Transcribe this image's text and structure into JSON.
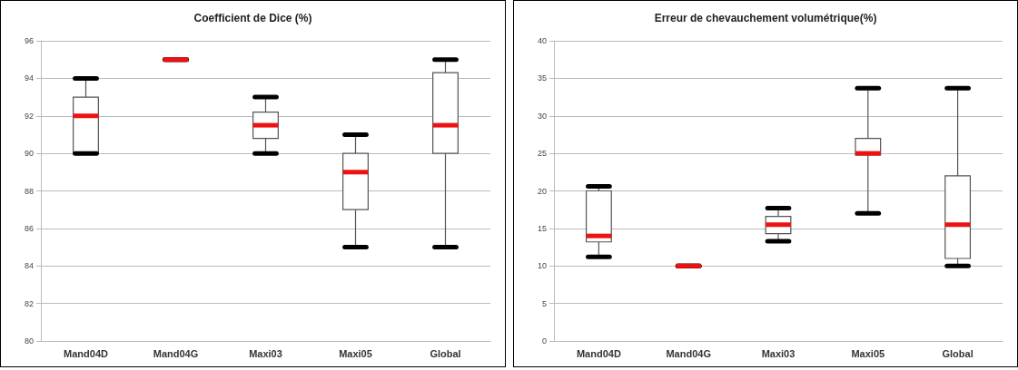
{
  "chart_data": [
    {
      "type": "box",
      "title": "Coefficient de Dice (%)",
      "categories": [
        "Mand04D",
        "Mand04G",
        "Maxi03",
        "Maxi05",
        "Global"
      ],
      "ylim": [
        80,
        96
      ],
      "yticks": [
        80,
        82,
        84,
        86,
        88,
        90,
        92,
        94,
        96
      ],
      "grid": "y",
      "boxes": [
        {
          "low": 90,
          "q1": 90,
          "median": 92,
          "q3": 93,
          "high": 94
        },
        {
          "low": 95,
          "q1": 95,
          "median": 95,
          "q3": 95,
          "high": 95
        },
        {
          "low": 90,
          "q1": 90.8,
          "median": 91.5,
          "q3": 92.2,
          "high": 93
        },
        {
          "low": 85,
          "q1": 87,
          "median": 89,
          "q3": 90,
          "high": 91
        },
        {
          "low": 85,
          "q1": 90,
          "median": 91.5,
          "q3": 94.3,
          "high": 95
        }
      ]
    },
    {
      "type": "box",
      "title": "Erreur de chevauchement volumétrique(%)",
      "categories": [
        "Mand04D",
        "Mand04G",
        "Maxi03",
        "Maxi05",
        "Global"
      ],
      "ylim": [
        0,
        40
      ],
      "yticks": [
        0,
        5,
        10,
        15,
        20,
        25,
        30,
        35,
        40
      ],
      "grid": "y",
      "boxes": [
        {
          "low": 11.2,
          "q1": 13.2,
          "median": 14,
          "q3": 20,
          "high": 20.6
        },
        {
          "low": 10,
          "q1": 10,
          "median": 10,
          "q3": 10,
          "high": 10
        },
        {
          "low": 13.3,
          "q1": 14.3,
          "median": 15.5,
          "q3": 16.6,
          "high": 17.7
        },
        {
          "low": 17,
          "q1": 24.8,
          "median": 25,
          "q3": 27,
          "high": 33.7
        },
        {
          "low": 10,
          "q1": 11,
          "median": 15.5,
          "q3": 22,
          "high": 33.7
        }
      ]
    }
  ]
}
